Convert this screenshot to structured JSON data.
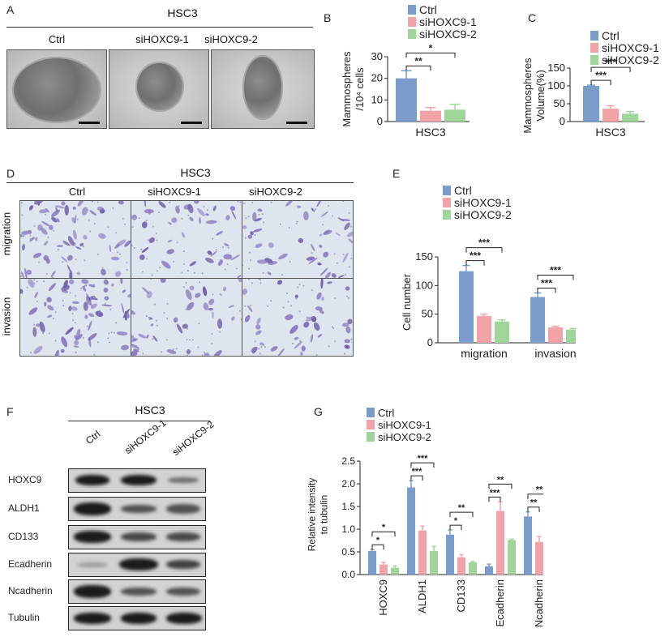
{
  "panel_a": {
    "letter": "A",
    "header": "HSC3",
    "columns": [
      "Ctrl",
      "siHOXC9-1",
      "siHOXC9-2"
    ]
  },
  "panel_d": {
    "letter": "D",
    "header": "HSC3",
    "columns": [
      "Ctrl",
      "siHOXC9-1",
      "siHOXC9-2"
    ],
    "rows": [
      "migration",
      "invasion"
    ]
  },
  "panel_f": {
    "letter": "F",
    "header": "HSC3",
    "lanes": [
      "Ctrl",
      "siHOXC9-1",
      "siHOXC9-2"
    ],
    "proteins": [
      "HOXC9",
      "ALDH1",
      "CD133",
      "Ecadherin",
      "Ncadherin",
      "Tubulin"
    ]
  },
  "colors": {
    "ctrl": "#7b9ccb",
    "si1": "#f2a3a8",
    "si2": "#9fd49a"
  },
  "chart_data": [
    {
      "id": "B",
      "letter": "B",
      "type": "bar",
      "categories": [
        "HSC3"
      ],
      "series": [
        {
          "name": "Ctrl",
          "values": [
            20
          ],
          "errors": [
            3.5
          ]
        },
        {
          "name": "siHOXC9-1",
          "values": [
            5
          ],
          "errors": [
            1.5
          ]
        },
        {
          "name": "siHOXC9-2",
          "values": [
            5.5
          ],
          "errors": [
            2.5
          ]
        }
      ],
      "ylabel_lines": [
        "Mammospheres",
        "/10⁴ cells"
      ],
      "ylim": [
        0,
        30
      ],
      "yticks": [
        0,
        10,
        20,
        30
      ],
      "legend": "top-right",
      "significance": [
        {
          "from": 0,
          "to": 1,
          "label": "**"
        },
        {
          "from": 0,
          "to": 2,
          "label": "*"
        }
      ]
    },
    {
      "id": "C",
      "letter": "C",
      "type": "bar",
      "categories": [
        "HSC3"
      ],
      "series": [
        {
          "name": "Ctrl",
          "values": [
            100
          ],
          "errors": [
            2
          ]
        },
        {
          "name": "siHOXC9-1",
          "values": [
            36
          ],
          "errors": [
            8
          ]
        },
        {
          "name": "siHOXC9-2",
          "values": [
            22
          ],
          "errors": [
            6
          ]
        }
      ],
      "ylabel_lines": [
        "Mammospheres",
        "Volume(%)"
      ],
      "ylim": [
        0,
        150
      ],
      "yticks": [
        0,
        50,
        100,
        150
      ],
      "legend": "top-right",
      "significance": [
        {
          "from": 0,
          "to": 1,
          "label": "***"
        },
        {
          "from": 0,
          "to": 2,
          "label": "***"
        }
      ]
    },
    {
      "id": "E",
      "letter": "E",
      "type": "bar",
      "categories": [
        "migration",
        "invasion"
      ],
      "series": [
        {
          "name": "Ctrl",
          "values": [
            125,
            80
          ],
          "errors": [
            10,
            7
          ]
        },
        {
          "name": "siHOXC9-1",
          "values": [
            47,
            27
          ],
          "errors": [
            3,
            2
          ]
        },
        {
          "name": "siHOXC9-2",
          "values": [
            37,
            23
          ],
          "errors": [
            3,
            2
          ]
        }
      ],
      "ylabel": "Cell number",
      "ylim": [
        0,
        150
      ],
      "yticks": [
        0,
        50,
        100,
        150
      ],
      "legend": "top-left",
      "significance": [
        {
          "group": 0,
          "from": 0,
          "to": 1,
          "label": "***"
        },
        {
          "group": 0,
          "from": 0,
          "to": 2,
          "label": "***"
        },
        {
          "group": 1,
          "from": 0,
          "to": 1,
          "label": "***"
        },
        {
          "group": 1,
          "from": 0,
          "to": 2,
          "label": "***"
        }
      ]
    },
    {
      "id": "G",
      "letter": "G",
      "type": "bar",
      "categories": [
        "HOXC9",
        "ALDH1",
        "CD133",
        "Ecadherin",
        "Ncadherin"
      ],
      "series": [
        {
          "name": "Ctrl",
          "values": [
            0.52,
            1.92,
            0.88,
            0.18,
            1.28
          ],
          "errors": [
            0.03,
            0.15,
            0.1,
            0.05,
            0.1
          ]
        },
        {
          "name": "siHOXC9-1",
          "values": [
            0.22,
            0.97,
            0.38,
            1.4,
            0.72
          ],
          "errors": [
            0.05,
            0.1,
            0.06,
            0.2,
            0.12
          ]
        },
        {
          "name": "siHOXC9-2",
          "values": [
            0.15,
            0.52,
            0.27,
            0.76,
            0.7
          ],
          "errors": [
            0.04,
            0.1,
            0.02,
            0.02,
            0.03
          ]
        }
      ],
      "ylabel_lines": [
        "Relative intensity",
        "to tubulin"
      ],
      "ylim": [
        0,
        2.5
      ],
      "yticks": [
        0,
        0.5,
        1.0,
        1.5,
        2.0,
        2.5
      ],
      "ytick_labels": [
        "0.0",
        "0.5",
        "1.0",
        "1.5",
        "2.0",
        "2.5"
      ],
      "legend": "top-left",
      "significance": [
        {
          "group": 0,
          "from": 0,
          "to": 1,
          "label": "*"
        },
        {
          "group": 0,
          "from": 0,
          "to": 2,
          "label": "*"
        },
        {
          "group": 1,
          "from": 0,
          "to": 1,
          "label": "***"
        },
        {
          "group": 1,
          "from": 0,
          "to": 2,
          "label": "***"
        },
        {
          "group": 2,
          "from": 0,
          "to": 1,
          "label": "*"
        },
        {
          "group": 2,
          "from": 0,
          "to": 2,
          "label": "**"
        },
        {
          "group": 3,
          "from": 0,
          "to": 1,
          "label": "***"
        },
        {
          "group": 3,
          "from": 0,
          "to": 2,
          "label": "**"
        },
        {
          "group": 4,
          "from": 0,
          "to": 1,
          "label": "**"
        },
        {
          "group": 4,
          "from": 0,
          "to": 2,
          "label": "**"
        }
      ]
    }
  ]
}
